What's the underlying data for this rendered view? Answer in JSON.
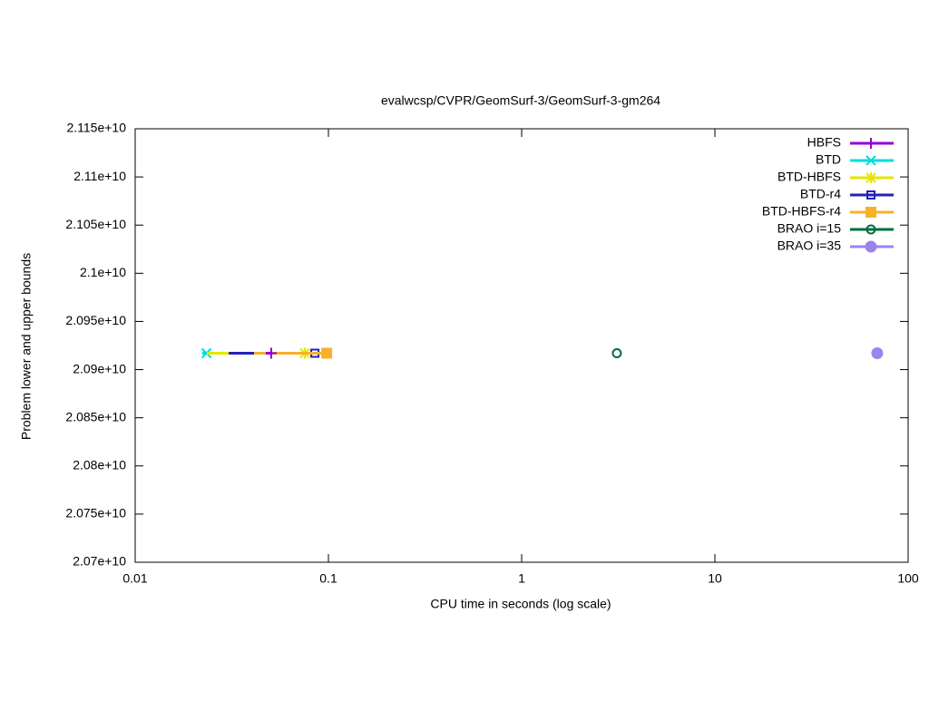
{
  "chart_data": {
    "type": "line",
    "title": "evalwcsp/CVPR/GeomSurf-3/GeomSurf-3-gm264",
    "x_label": "CPU time in seconds (log scale)",
    "y_label": "Problem lower and upper bounds",
    "x_log": true,
    "xlim": [
      0.01,
      100
    ],
    "xticks": [
      0.01,
      0.1,
      1,
      10,
      100
    ],
    "ylim": [
      20700000000,
      21150000000
    ],
    "yticks": [
      {
        "value": 20700000000,
        "label": "2.07e+10"
      },
      {
        "value": 20750000000,
        "label": "2.075e+10"
      },
      {
        "value": 20800000000,
        "label": "2.08e+10"
      },
      {
        "value": 20850000000,
        "label": "2.085e+10"
      },
      {
        "value": 20900000000,
        "label": "2.09e+10"
      },
      {
        "value": 20950000000,
        "label": "2.095e+10"
      },
      {
        "value": 21000000000,
        "label": "2.1e+10"
      },
      {
        "value": 21050000000,
        "label": "2.105e+10"
      },
      {
        "value": 21100000000,
        "label": "2.11e+10"
      },
      {
        "value": 21150000000,
        "label": "2.115e+10"
      }
    ],
    "legend": "top-right",
    "series": [
      {
        "name": "BTD",
        "color": "#00dde0",
        "marker": "cross",
        "x": [
          0.0222,
          0.0234
        ],
        "values": [
          20917000000,
          20917000000
        ]
      },
      {
        "name": "BTD-HBFS",
        "color": "#e6e600",
        "marker": "star",
        "x": [
          0.0235,
          0.0755
        ],
        "values": [
          20917000000,
          20917000000
        ]
      },
      {
        "name": "BTD-r4",
        "color": "#2222b8",
        "marker": "open-square",
        "x": [
          0.0305,
          0.0851
        ],
        "values": [
          20917000000,
          20917000000
        ]
      },
      {
        "name": "BTD-HBFS-r4",
        "color": "#f5b22a",
        "marker": "square",
        "x": [
          0.0412,
          0.098
        ],
        "values": [
          20917000000,
          20917000000
        ]
      },
      {
        "name": "HBFS",
        "color": "#9400d3",
        "marker": "plus",
        "x": [
          0.0474,
          0.0506
        ],
        "values": [
          20917000000,
          20917000000
        ]
      },
      {
        "name": "BRAO i=15",
        "color": "#006d3c",
        "marker": "open-circle",
        "x": [
          3.11
        ],
        "values": [
          20917000000
        ]
      },
      {
        "name": "BRAO i=35",
        "color": "#9b84ee",
        "marker": "circle",
        "x": [
          69.2
        ],
        "values": [
          20917000000
        ]
      }
    ]
  }
}
